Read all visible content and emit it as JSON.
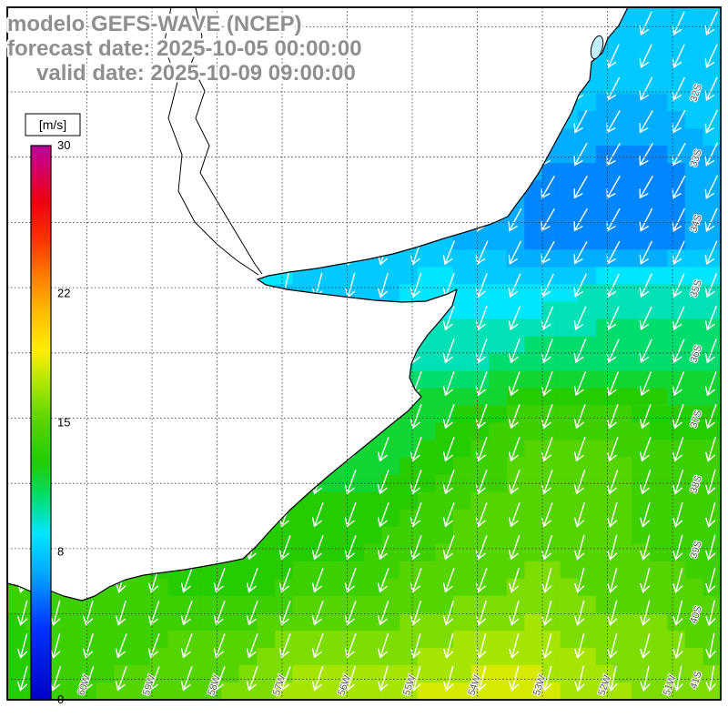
{
  "header": {
    "title_line1": "modelo GEFS-WAVE (NCEP)",
    "title_line2": "forecast date: 2025-10-05 00:00:00",
    "title_line3": "valid date: 2025-10-09 09:00:00"
  },
  "colorbar": {
    "unit_label": "[m/s]",
    "min": 0,
    "max": 30,
    "tick_values": [
      30,
      22,
      15,
      8,
      0
    ],
    "stops": [
      {
        "frac": 0.0,
        "color": "#0000c8"
      },
      {
        "frac": 0.13,
        "color": "#0033ff"
      },
      {
        "frac": 0.23,
        "color": "#00aaff"
      },
      {
        "frac": 0.3,
        "color": "#00e6ff"
      },
      {
        "frac": 0.37,
        "color": "#00dd66"
      },
      {
        "frac": 0.43,
        "color": "#22cc00"
      },
      {
        "frac": 0.5,
        "color": "#55d400"
      },
      {
        "frac": 0.57,
        "color": "#aae600"
      },
      {
        "frac": 0.63,
        "color": "#ffee00"
      },
      {
        "frac": 0.7,
        "color": "#ffbb00"
      },
      {
        "frac": 0.77,
        "color": "#ff7700"
      },
      {
        "frac": 0.83,
        "color": "#ff3300"
      },
      {
        "frac": 0.9,
        "color": "#ee0011"
      },
      {
        "frac": 0.97,
        "color": "#cc0077"
      },
      {
        "frac": 1.0,
        "color": "#bb0099"
      }
    ]
  },
  "chart_data": {
    "type": "heatmap",
    "title": "modelo GEFS-WAVE (NCEP) wind speed forecast",
    "units": "m/s",
    "legend_position": "left",
    "grid": true,
    "lon_labels": [
      "60W",
      "59W",
      "58W",
      "57W",
      "56W",
      "55W",
      "54W",
      "53W",
      "52W",
      "51W"
    ],
    "lat_labels": [
      "32S",
      "33S",
      "34S",
      "35S",
      "36S",
      "37S",
      "38S",
      "39S",
      "40S",
      "41S"
    ],
    "value_range": [
      0,
      30
    ],
    "speed_grid": [
      [
        10,
        10,
        10,
        10,
        10,
        10,
        10,
        9,
        9,
        8,
        8,
        8,
        8
      ],
      [
        10,
        10,
        10,
        10,
        10,
        10,
        9,
        9,
        8,
        8,
        8,
        8,
        8
      ],
      [
        10,
        10,
        10,
        10,
        10,
        9,
        9,
        8,
        8,
        8,
        7,
        7,
        8
      ],
      [
        10,
        10,
        10,
        10,
        9,
        9,
        9,
        8,
        8,
        6,
        6,
        6,
        7
      ],
      [
        10,
        10,
        10,
        9,
        9,
        9,
        8,
        8,
        7,
        6,
        6,
        6,
        7
      ],
      [
        11,
        11,
        11,
        10,
        9,
        8,
        8,
        9,
        9,
        9,
        10,
        10,
        10
      ],
      [
        12,
        12,
        12,
        11,
        10,
        9,
        9,
        10,
        10,
        11,
        11,
        11,
        11
      ],
      [
        13,
        13,
        13,
        12,
        11,
        10,
        11,
        12,
        13,
        14,
        14,
        13,
        13
      ],
      [
        13,
        13,
        13,
        13,
        12,
        12,
        12,
        13,
        14,
        15,
        15,
        14,
        14
      ],
      [
        14,
        14,
        14,
        13,
        13,
        13,
        13,
        14,
        15,
        15,
        15,
        14,
        14
      ],
      [
        14,
        14,
        14,
        13,
        13,
        14,
        14,
        15,
        15,
        16,
        15,
        15,
        14
      ],
      [
        13,
        14,
        14,
        15,
        15,
        16,
        16,
        16,
        17,
        17,
        16,
        16,
        15
      ],
      [
        13,
        14,
        15,
        15,
        16,
        17,
        17,
        18,
        18,
        18,
        17,
        16,
        16
      ]
    ],
    "dir_toward_deg_grid": [
      [
        185,
        185,
        185,
        185,
        185,
        190,
        190,
        195,
        200,
        205,
        205,
        205,
        205
      ],
      [
        185,
        185,
        185,
        185,
        185,
        190,
        190,
        195,
        200,
        205,
        205,
        205,
        205
      ],
      [
        185,
        185,
        185,
        185,
        190,
        190,
        195,
        200,
        200,
        205,
        210,
        210,
        205
      ],
      [
        185,
        185,
        185,
        190,
        190,
        190,
        195,
        200,
        205,
        210,
        210,
        210,
        205
      ],
      [
        185,
        185,
        185,
        190,
        190,
        195,
        195,
        200,
        205,
        210,
        210,
        205,
        205
      ],
      [
        185,
        185,
        190,
        190,
        190,
        195,
        195,
        200,
        200,
        205,
        205,
        205,
        200
      ],
      [
        190,
        190,
        190,
        190,
        195,
        195,
        195,
        200,
        200,
        200,
        205,
        205,
        200
      ],
      [
        190,
        190,
        190,
        195,
        195,
        195,
        200,
        200,
        200,
        200,
        200,
        200,
        200
      ],
      [
        190,
        190,
        195,
        195,
        195,
        200,
        200,
        200,
        200,
        200,
        200,
        200,
        195
      ],
      [
        190,
        195,
        195,
        195,
        200,
        200,
        200,
        200,
        200,
        200,
        195,
        195,
        195
      ],
      [
        195,
        195,
        195,
        200,
        200,
        200,
        200,
        200,
        200,
        195,
        195,
        195,
        195
      ],
      [
        195,
        195,
        200,
        200,
        200,
        200,
        200,
        195,
        195,
        195,
        195,
        195,
        190
      ],
      [
        195,
        200,
        200,
        200,
        200,
        200,
        195,
        195,
        195,
        195,
        190,
        190,
        190
      ]
    ]
  }
}
